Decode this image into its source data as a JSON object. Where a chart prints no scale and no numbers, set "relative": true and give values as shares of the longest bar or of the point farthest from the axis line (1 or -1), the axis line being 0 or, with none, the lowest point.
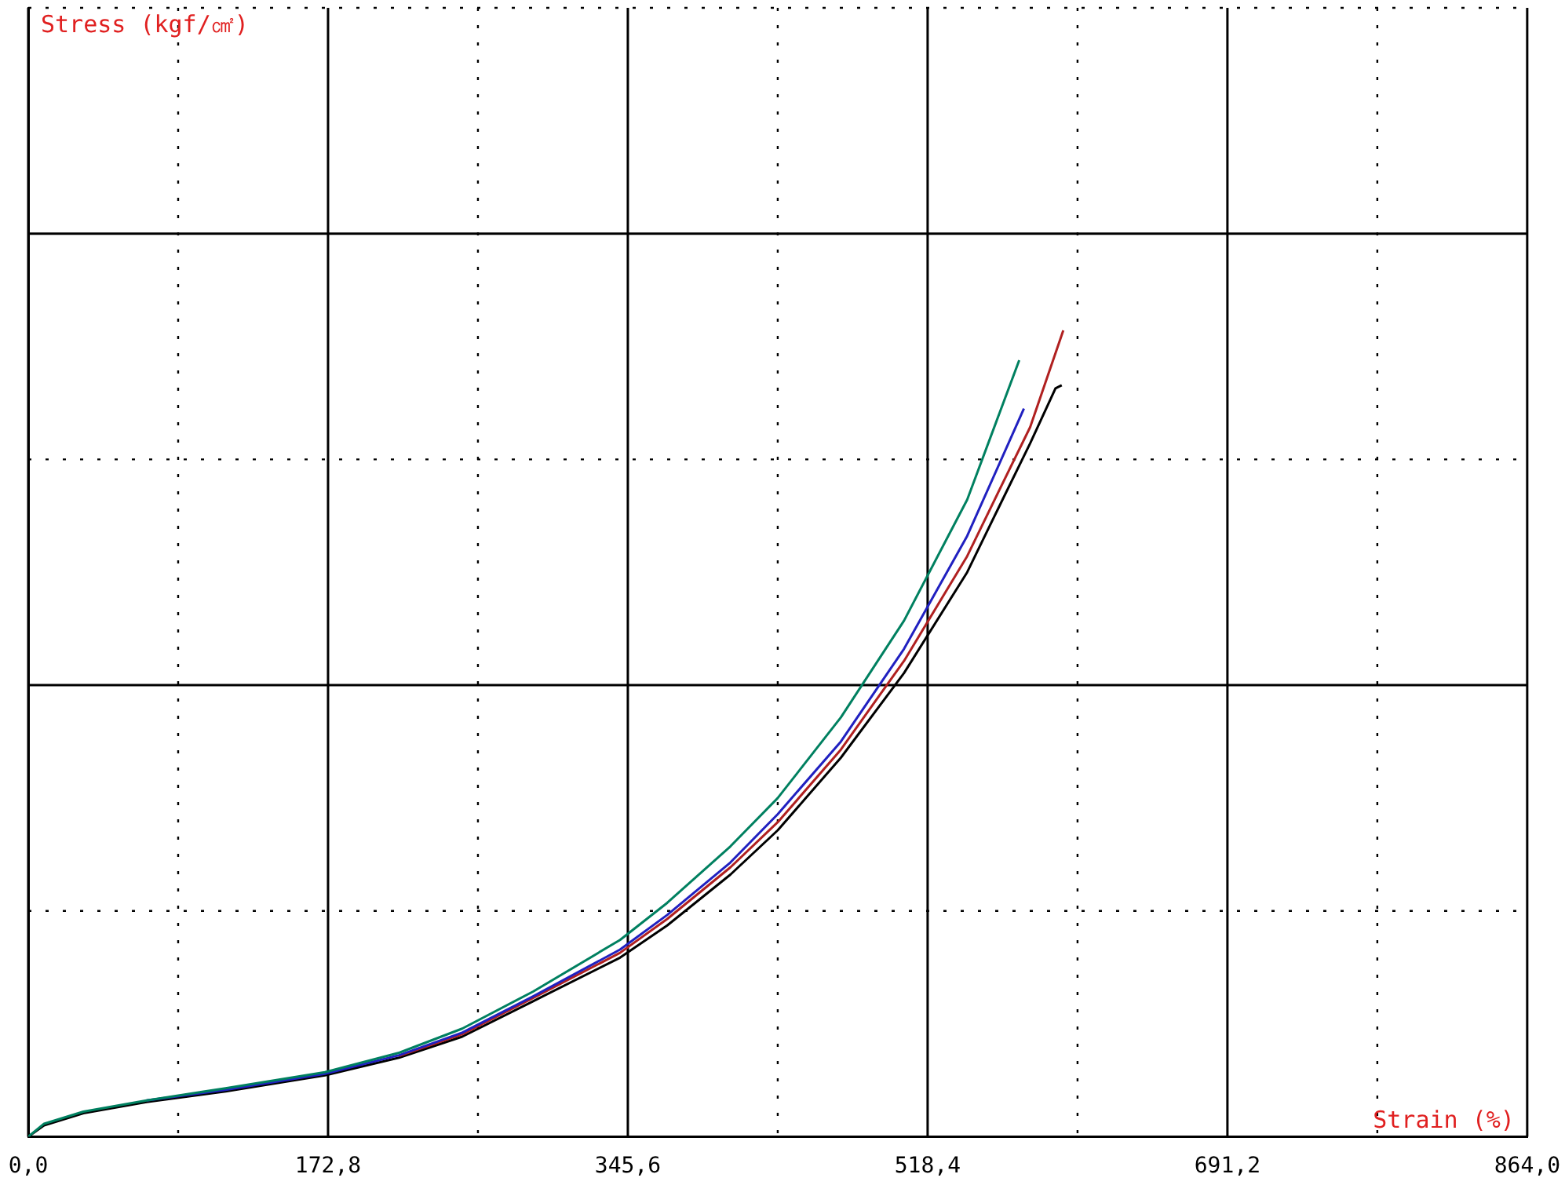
{
  "chart_data": {
    "type": "line",
    "xlabel": "Strain (%)",
    "annotations": [
      "Stress (kgf/㎠)"
    ],
    "relative": true,
    "grid": true,
    "marker": "none",
    "line_style": "solid",
    "tick_labels": "x",
    "xlim": [
      0,
      864
    ],
    "xticks": [
      {
        "value": 0,
        "label": "0,0"
      },
      {
        "value": 86.4,
        "label": null
      },
      {
        "value": 172.8,
        "label": "172,8"
      },
      {
        "value": 259.2,
        "label": null
      },
      {
        "value": 345.6,
        "label": "345,6"
      },
      {
        "value": 432,
        "label": null
      },
      {
        "value": 518.4,
        "label": "518,4"
      },
      {
        "value": 604.8,
        "label": null
      },
      {
        "value": 691.2,
        "label": "691,2"
      },
      {
        "value": 777.6,
        "label": null
      },
      {
        "value": 864,
        "label": "864,0"
      }
    ],
    "series": [
      {
        "color": "#008060",
        "x": [
          0,
          9.1,
          31.8,
          68.2,
          113.7,
          171,
          213.7,
          250.1,
          291,
          341.1,
          368.3,
          404.7,
          432,
          468.4,
          504.8,
          541.2,
          571.2
        ],
        "values": [
          0,
          0.016,
          0.031,
          0.045,
          0.06,
          0.08,
          0.104,
          0.134,
          0.18,
          0.244,
          0.29,
          0.36,
          0.42,
          0.52,
          0.64,
          0.79,
          0.963
        ]
      },
      {
        "color": "#2020c0",
        "x": [
          68.2,
          113.7,
          171,
          213.7,
          250.1,
          291,
          341.1,
          368.3,
          404.7,
          432,
          468.4,
          504.8,
          541.2,
          573.9
        ],
        "values": [
          0.045,
          0.058,
          0.078,
          0.101,
          0.129,
          0.174,
          0.232,
          0.275,
          0.34,
          0.4,
          0.49,
          0.605,
          0.745,
          0.903
        ]
      },
      {
        "color": "#b02020",
        "x": [
          213.7,
          250.1,
          291,
          341.1,
          368.3,
          404.7,
          432,
          468.4,
          504.8,
          541.2,
          559.3,
          577.5,
          596.6
        ],
        "values": [
          0.1,
          0.127,
          0.172,
          0.228,
          0.27,
          0.334,
          0.39,
          0.48,
          0.59,
          0.72,
          0.8,
          0.88,
          1.0
        ]
      },
      {
        "color": "#000000",
        "x": [
          0,
          9.1,
          31.8,
          68.2,
          113.7,
          171,
          213.7,
          250.1,
          291,
          341.1,
          368.3,
          404.7,
          432,
          468.4,
          504.8,
          541.2,
          559.3,
          577.5,
          592.1,
          595.7
        ],
        "values": [
          0,
          0.014,
          0.029,
          0.043,
          0.056,
          0.076,
          0.098,
          0.124,
          0.168,
          0.222,
          0.262,
          0.325,
          0.38,
          0.47,
          0.575,
          0.7,
          0.78,
          0.86,
          0.928,
          0.932
        ]
      }
    ]
  }
}
